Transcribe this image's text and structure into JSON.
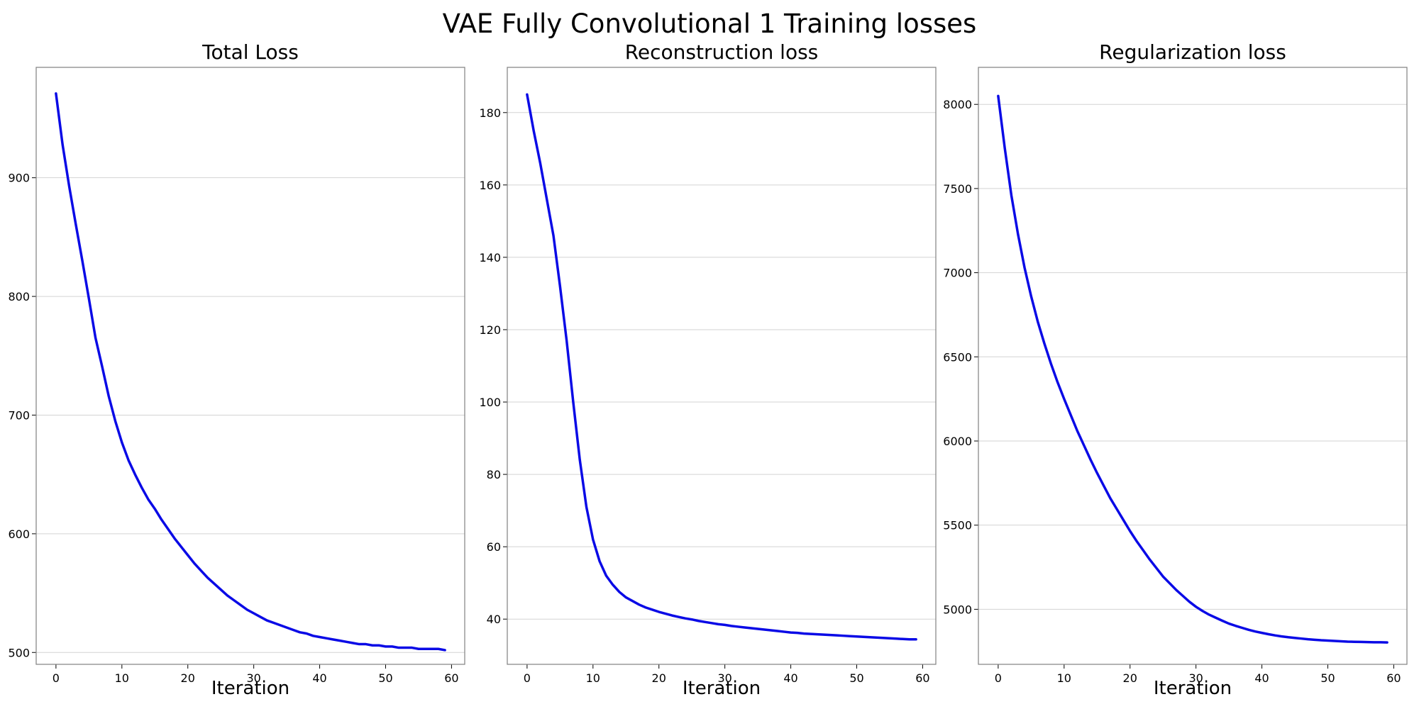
{
  "figure": {
    "title": "VAE Fully Convolutional 1 Training losses"
  },
  "line_color": "#0a0ae6",
  "chart_data": [
    {
      "type": "line",
      "title": "Total Loss",
      "xlabel": "Iteration",
      "ylabel": "",
      "xlim": [
        -3,
        62
      ],
      "ylim": [
        490,
        993
      ],
      "xticks": [
        0,
        10,
        20,
        30,
        40,
        50,
        60
      ],
      "yticks": [
        500,
        600,
        700,
        800,
        900
      ],
      "grid": "horizontal",
      "series": [
        {
          "x": [
            0,
            1,
            2,
            3,
            4,
            5,
            6,
            7,
            8,
            9,
            10,
            11,
            12,
            13,
            14,
            15,
            16,
            17,
            18,
            19,
            20,
            21,
            22,
            23,
            24,
            25,
            26,
            27,
            28,
            29,
            30,
            31,
            32,
            33,
            34,
            35,
            36,
            37,
            38,
            39,
            40,
            41,
            42,
            43,
            44,
            45,
            46,
            47,
            48,
            49,
            50,
            51,
            52,
            53,
            54,
            55,
            56,
            57,
            58,
            59
          ],
          "values": [
            971,
            928,
            893,
            861,
            830,
            798,
            765,
            741,
            716,
            695,
            677,
            662,
            650,
            639,
            629,
            621,
            612,
            604,
            596,
            589,
            582,
            575,
            569,
            563,
            558,
            553,
            548,
            544,
            540,
            536,
            533,
            530,
            527,
            525,
            523,
            521,
            519,
            517,
            516,
            514,
            513,
            512,
            511,
            510,
            509,
            508,
            507,
            507,
            506,
            506,
            505,
            505,
            504,
            504,
            504,
            503,
            503,
            503,
            503,
            502
          ]
        }
      ]
    },
    {
      "type": "line",
      "title": "Reconstruction loss",
      "xlabel": "Iteration",
      "ylabel": "",
      "xlim": [
        -3,
        62
      ],
      "ylim": [
        27.5,
        192.5
      ],
      "xticks": [
        0,
        10,
        20,
        30,
        40,
        50,
        60
      ],
      "yticks": [
        40,
        60,
        80,
        100,
        120,
        140,
        160,
        180
      ],
      "grid": "horizontal",
      "series": [
        {
          "x": [
            0,
            1,
            2,
            3,
            4,
            5,
            6,
            7,
            8,
            9,
            10,
            11,
            12,
            13,
            14,
            15,
            16,
            17,
            18,
            19,
            20,
            21,
            22,
            23,
            24,
            25,
            26,
            27,
            28,
            29,
            30,
            31,
            32,
            33,
            34,
            35,
            36,
            37,
            38,
            39,
            40,
            41,
            42,
            43,
            44,
            45,
            46,
            47,
            48,
            49,
            50,
            51,
            52,
            53,
            54,
            55,
            56,
            57,
            58,
            59
          ],
          "values": [
            185,
            175,
            166,
            156,
            146,
            132,
            117,
            100,
            84,
            71,
            62,
            56,
            52,
            49.5,
            47.5,
            46,
            45,
            44,
            43.2,
            42.6,
            42,
            41.5,
            41,
            40.6,
            40.2,
            39.9,
            39.5,
            39.2,
            38.9,
            38.6,
            38.4,
            38.1,
            37.9,
            37.7,
            37.5,
            37.3,
            37.1,
            36.9,
            36.7,
            36.5,
            36.3,
            36.2,
            36,
            35.9,
            35.8,
            35.7,
            35.6,
            35.5,
            35.4,
            35.3,
            35.2,
            35.1,
            35,
            34.9,
            34.8,
            34.7,
            34.6,
            34.5,
            34.4,
            34.4
          ]
        }
      ]
    },
    {
      "type": "line",
      "title": "Regularization loss",
      "xlabel": "Iteration",
      "ylabel": "",
      "xlim": [
        -3,
        62
      ],
      "ylim": [
        4673,
        8220
      ],
      "xticks": [
        0,
        10,
        20,
        30,
        40,
        50,
        60
      ],
      "yticks": [
        5000,
        5500,
        6000,
        6500,
        7000,
        7500,
        8000
      ],
      "grid": "horizontal",
      "series": [
        {
          "x": [
            0,
            1,
            2,
            3,
            4,
            5,
            6,
            7,
            8,
            9,
            10,
            11,
            12,
            13,
            14,
            15,
            16,
            17,
            18,
            19,
            20,
            21,
            22,
            23,
            24,
            25,
            26,
            27,
            28,
            29,
            30,
            31,
            32,
            33,
            34,
            35,
            36,
            37,
            38,
            39,
            40,
            41,
            42,
            43,
            44,
            45,
            46,
            47,
            48,
            49,
            50,
            51,
            52,
            53,
            54,
            55,
            56,
            57,
            58,
            59
          ],
          "values": [
            8050,
            7740,
            7460,
            7230,
            7030,
            6860,
            6710,
            6580,
            6460,
            6350,
            6250,
            6155,
            6060,
            5975,
            5890,
            5810,
            5735,
            5660,
            5595,
            5530,
            5465,
            5405,
            5350,
            5295,
            5245,
            5195,
            5155,
            5115,
            5080,
            5045,
            5015,
            4990,
            4968,
            4950,
            4932,
            4915,
            4902,
            4890,
            4878,
            4868,
            4860,
            4852,
            4845,
            4839,
            4834,
            4830,
            4826,
            4822,
            4819,
            4816,
            4814,
            4812,
            4810,
            4808,
            4807,
            4806,
            4805,
            4804,
            4804,
            4803
          ]
        }
      ]
    }
  ]
}
